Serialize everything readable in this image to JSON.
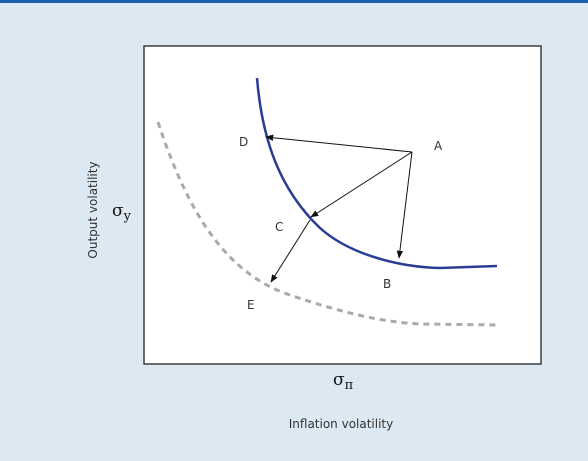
{
  "y_axis": {
    "label": "Output volatility",
    "symbol": {
      "base": "σ",
      "sub": "y"
    }
  },
  "x_axis": {
    "label": "Inflation volatility",
    "symbol": {
      "base": "σ",
      "sub": "π"
    }
  },
  "points": [
    {
      "label": "A"
    },
    {
      "label": "B"
    },
    {
      "label": "C"
    },
    {
      "label": "D"
    },
    {
      "label": "E"
    }
  ]
}
